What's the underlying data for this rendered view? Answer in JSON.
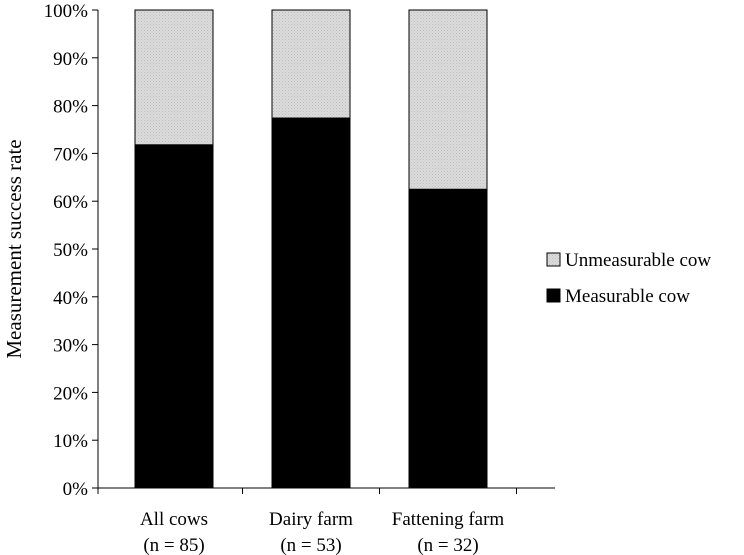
{
  "chart_data": {
    "type": "bar",
    "stacked": true,
    "ylabel": "Measurement success rate",
    "ylim": [
      0,
      100
    ],
    "y_ticks": [
      "0%",
      "10%",
      "20%",
      "30%",
      "40%",
      "50%",
      "60%",
      "70%",
      "80%",
      "90%",
      "100%"
    ],
    "categories": [
      [
        "All cows",
        "(n = 85)"
      ],
      [
        "Dairy farm",
        "(n = 53)"
      ],
      [
        "Fattening farm",
        "(n = 32)"
      ]
    ],
    "series": [
      {
        "name": "Measurable cow",
        "values": [
          71.8,
          77.4,
          62.5
        ],
        "color": "#000000"
      },
      {
        "name": "Unmeasurable cow",
        "values": [
          28.2,
          22.6,
          37.5
        ],
        "color": "#d9d9d9"
      }
    ],
    "legend": {
      "position": "right",
      "order": [
        "Unmeasurable cow",
        "Measurable cow"
      ]
    },
    "grid": false
  }
}
